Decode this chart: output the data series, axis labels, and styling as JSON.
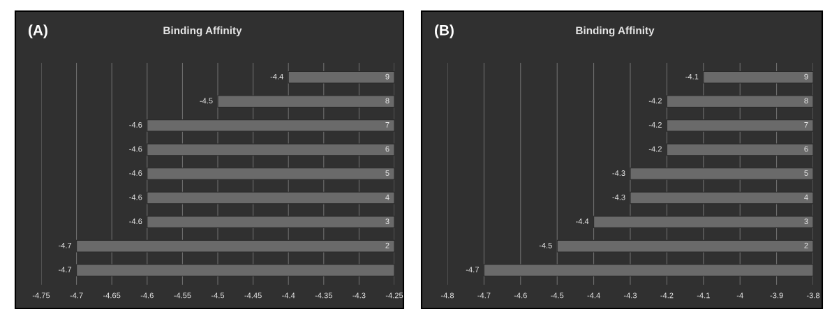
{
  "chart_data": [
    {
      "type": "bar",
      "orientation": "horizontal",
      "title": "Binding Affinity",
      "annotations": [
        "(A)"
      ],
      "categories": [
        "9",
        "8",
        "7",
        "6",
        "5",
        "4",
        "3",
        "2",
        null
      ],
      "values": [
        -4.4,
        -4.5,
        -4.6,
        -4.6,
        -4.6,
        -4.6,
        -4.6,
        -4.7,
        -4.7
      ],
      "color": "#6a6a6a",
      "xlim": [
        -4.75,
        -4.25
      ],
      "xticks": [
        -4.75,
        -4.7,
        -4.65,
        -4.6,
        -4.55,
        -4.5,
        -4.45,
        -4.4,
        -4.35,
        -4.3,
        -4.25
      ],
      "grid": "x",
      "data_labels": true
    },
    {
      "type": "bar",
      "orientation": "horizontal",
      "title": "Binding Affinity",
      "annotations": [
        "(B)"
      ],
      "categories": [
        "9",
        "8",
        "7",
        "6",
        "5",
        "4",
        "3",
        "2",
        null
      ],
      "values": [
        -4.1,
        -4.2,
        -4.2,
        -4.2,
        -4.3,
        -4.3,
        -4.4,
        -4.5,
        -4.7
      ],
      "color": "#6a6a6a",
      "xlim": [
        -4.8,
        -3.8
      ],
      "xticks": [
        -4.8,
        -4.7,
        -4.6,
        -4.5,
        -4.4,
        -4.3,
        -4.2,
        -4.1,
        -4,
        -3.9,
        -3.8
      ],
      "grid": "x",
      "data_labels": true
    }
  ]
}
